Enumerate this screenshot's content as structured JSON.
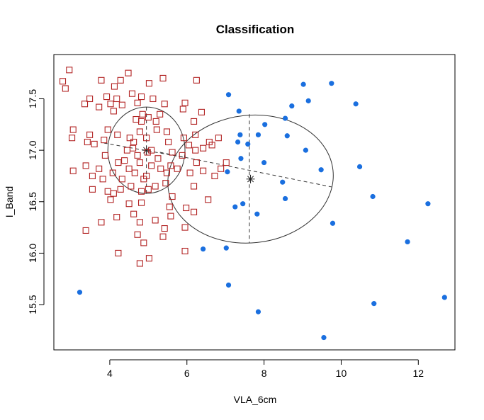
{
  "chart_data": {
    "type": "scatter",
    "title": "Classification",
    "xlabel": "VLA_6cm",
    "ylabel": "I_Band",
    "xlim": [
      2.55,
      12.95
    ],
    "ylim": [
      15.06,
      17.93
    ],
    "x_ticks": [
      4,
      6,
      8,
      10,
      12
    ],
    "y_ticks": [
      15.5,
      16.0,
      16.5,
      17.0,
      17.5
    ],
    "x_tick_labels": [
      "4",
      "6",
      "8",
      "10",
      "12"
    ],
    "y_tick_labels": [
      "15.5",
      "16.0",
      "16.5",
      "17.0",
      "17.5"
    ],
    "grid": false,
    "legend": "none",
    "series": [
      {
        "marker": "open-square",
        "color": "#b22222",
        "points": [
          [
            2.95,
            17.78
          ],
          [
            2.78,
            17.67
          ],
          [
            2.85,
            17.6
          ],
          [
            3.78,
            17.68
          ],
          [
            4.28,
            17.68
          ],
          [
            4.48,
            17.75
          ],
          [
            5.38,
            17.7
          ],
          [
            6.25,
            17.68
          ],
          [
            4.12,
            17.62
          ],
          [
            5.02,
            17.65
          ],
          [
            3.35,
            17.45
          ],
          [
            3.48,
            17.5
          ],
          [
            3.72,
            17.42
          ],
          [
            3.92,
            17.52
          ],
          [
            4.02,
            17.45
          ],
          [
            4.18,
            17.5
          ],
          [
            4.32,
            17.44
          ],
          [
            4.58,
            17.55
          ],
          [
            4.82,
            17.52
          ],
          [
            5.12,
            17.5
          ],
          [
            5.42,
            17.45
          ],
          [
            5.95,
            17.46
          ],
          [
            6.38,
            17.37
          ],
          [
            4.72,
            17.46
          ],
          [
            5.2,
            17.28
          ],
          [
            5.0,
            17.32
          ],
          [
            5.48,
            17.18
          ],
          [
            4.68,
            17.3
          ],
          [
            4.85,
            17.35
          ],
          [
            5.9,
            17.4
          ],
          [
            6.18,
            17.28
          ],
          [
            4.1,
            17.38
          ],
          [
            3.05,
            17.2
          ],
          [
            3.02,
            17.12
          ],
          [
            3.48,
            17.15
          ],
          [
            3.6,
            17.06
          ],
          [
            3.42,
            17.08
          ],
          [
            3.95,
            17.2
          ],
          [
            4.2,
            17.15
          ],
          [
            4.52,
            17.12
          ],
          [
            4.62,
            17.08
          ],
          [
            4.78,
            17.18
          ],
          [
            4.95,
            17.12
          ],
          [
            5.22,
            17.2
          ],
          [
            5.52,
            17.08
          ],
          [
            5.92,
            17.12
          ],
          [
            6.22,
            17.15
          ],
          [
            6.58,
            17.08
          ],
          [
            6.82,
            17.12
          ],
          [
            4.45,
            17.0
          ],
          [
            4.6,
            17.02
          ],
          [
            4.72,
            16.95
          ],
          [
            4.98,
            16.98
          ],
          [
            5.08,
            17.0
          ],
          [
            5.25,
            16.92
          ],
          [
            5.62,
            16.98
          ],
          [
            5.88,
            16.95
          ],
          [
            6.22,
            17.0
          ],
          [
            6.42,
            17.02
          ],
          [
            6.65,
            17.05
          ],
          [
            3.88,
            16.95
          ],
          [
            3.72,
            16.82
          ],
          [
            3.55,
            16.75
          ],
          [
            3.38,
            16.85
          ],
          [
            3.05,
            16.8
          ],
          [
            3.55,
            16.62
          ],
          [
            3.82,
            16.72
          ],
          [
            4.08,
            16.78
          ],
          [
            4.22,
            16.88
          ],
          [
            4.32,
            16.72
          ],
          [
            4.5,
            16.82
          ],
          [
            4.65,
            16.78
          ],
          [
            4.78,
            16.88
          ],
          [
            4.95,
            16.75
          ],
          [
            5.08,
            16.85
          ],
          [
            5.32,
            16.82
          ],
          [
            5.48,
            16.78
          ],
          [
            5.58,
            16.85
          ],
          [
            5.75,
            16.82
          ],
          [
            6.08,
            16.78
          ],
          [
            6.25,
            16.88
          ],
          [
            6.42,
            16.8
          ],
          [
            6.72,
            16.75
          ],
          [
            6.88,
            16.82
          ],
          [
            7.02,
            16.88
          ],
          [
            3.95,
            16.6
          ],
          [
            4.1,
            16.58
          ],
          [
            4.28,
            16.62
          ],
          [
            4.55,
            16.65
          ],
          [
            4.82,
            16.6
          ],
          [
            5.0,
            16.62
          ],
          [
            5.18,
            16.65
          ],
          [
            5.45,
            16.68
          ],
          [
            5.62,
            16.55
          ],
          [
            6.18,
            16.65
          ],
          [
            6.55,
            16.52
          ],
          [
            4.02,
            16.52
          ],
          [
            4.5,
            16.48
          ],
          [
            4.82,
            16.49
          ],
          [
            5.55,
            16.45
          ],
          [
            5.98,
            16.44
          ],
          [
            6.18,
            16.4
          ],
          [
            3.78,
            16.3
          ],
          [
            4.18,
            16.35
          ],
          [
            4.62,
            16.38
          ],
          [
            5.58,
            16.36
          ],
          [
            5.18,
            16.32
          ],
          [
            4.78,
            16.3
          ],
          [
            5.42,
            16.24
          ],
          [
            5.95,
            16.25
          ],
          [
            3.38,
            16.22
          ],
          [
            4.72,
            16.18
          ],
          [
            5.38,
            16.16
          ],
          [
            4.88,
            16.1
          ],
          [
            4.22,
            16.0
          ],
          [
            5.02,
            15.95
          ],
          [
            5.95,
            16.02
          ],
          [
            4.78,
            15.9
          ],
          [
            4.82,
            17.28
          ],
          [
            5.3,
            17.35
          ],
          [
            3.85,
            17.1
          ],
          [
            4.38,
            16.9
          ],
          [
            6.05,
            17.05
          ],
          [
            4.88,
            16.72
          ]
        ]
      },
      {
        "marker": "filled-circle",
        "color": "#1a6fdf",
        "points": [
          [
            9.75,
            17.65
          ],
          [
            9.02,
            17.64
          ],
          [
            7.08,
            17.54
          ],
          [
            9.15,
            17.48
          ],
          [
            10.38,
            17.45
          ],
          [
            8.72,
            17.43
          ],
          [
            7.35,
            17.38
          ],
          [
            8.55,
            17.31
          ],
          [
            8.02,
            17.25
          ],
          [
            7.38,
            17.15
          ],
          [
            7.85,
            17.15
          ],
          [
            8.6,
            17.14
          ],
          [
            7.32,
            17.08
          ],
          [
            7.58,
            17.06
          ],
          [
            9.08,
            17.0
          ],
          [
            7.4,
            16.92
          ],
          [
            8.0,
            16.88
          ],
          [
            10.48,
            16.84
          ],
          [
            9.48,
            16.81
          ],
          [
            7.05,
            16.79
          ],
          [
            8.48,
            16.69
          ],
          [
            10.82,
            16.55
          ],
          [
            8.55,
            16.53
          ],
          [
            12.25,
            16.48
          ],
          [
            7.45,
            16.48
          ],
          [
            7.25,
            16.45
          ],
          [
            7.82,
            16.38
          ],
          [
            9.78,
            16.29
          ],
          [
            11.72,
            16.11
          ],
          [
            6.42,
            16.04
          ],
          [
            7.02,
            16.05
          ],
          [
            3.22,
            15.62
          ],
          [
            7.08,
            15.69
          ],
          [
            12.68,
            15.57
          ],
          [
            10.85,
            15.51
          ],
          [
            7.85,
            15.43
          ],
          [
            9.55,
            15.18
          ]
        ]
      }
    ],
    "groups": [
      {
        "center": [
          4.95,
          17.0
        ],
        "ellipse_rx": 1.0,
        "ellipse_ry": 0.42,
        "axis1": [
          [
            3.85,
            17.07
          ],
          [
            5.95,
            16.93
          ]
        ],
        "axis2": [
          [
            4.95,
            17.42
          ],
          [
            4.95,
            16.58
          ]
        ]
      },
      {
        "center": [
          7.65,
          16.72
        ],
        "ellipse_rx": 2.15,
        "ellipse_ry": 0.62,
        "angle_deg": -6,
        "axis1": [
          [
            5.3,
            16.98
          ],
          [
            9.8,
            16.64
          ]
        ],
        "axis2": [
          [
            7.62,
            17.35
          ],
          [
            7.62,
            16.1
          ]
        ]
      }
    ]
  }
}
